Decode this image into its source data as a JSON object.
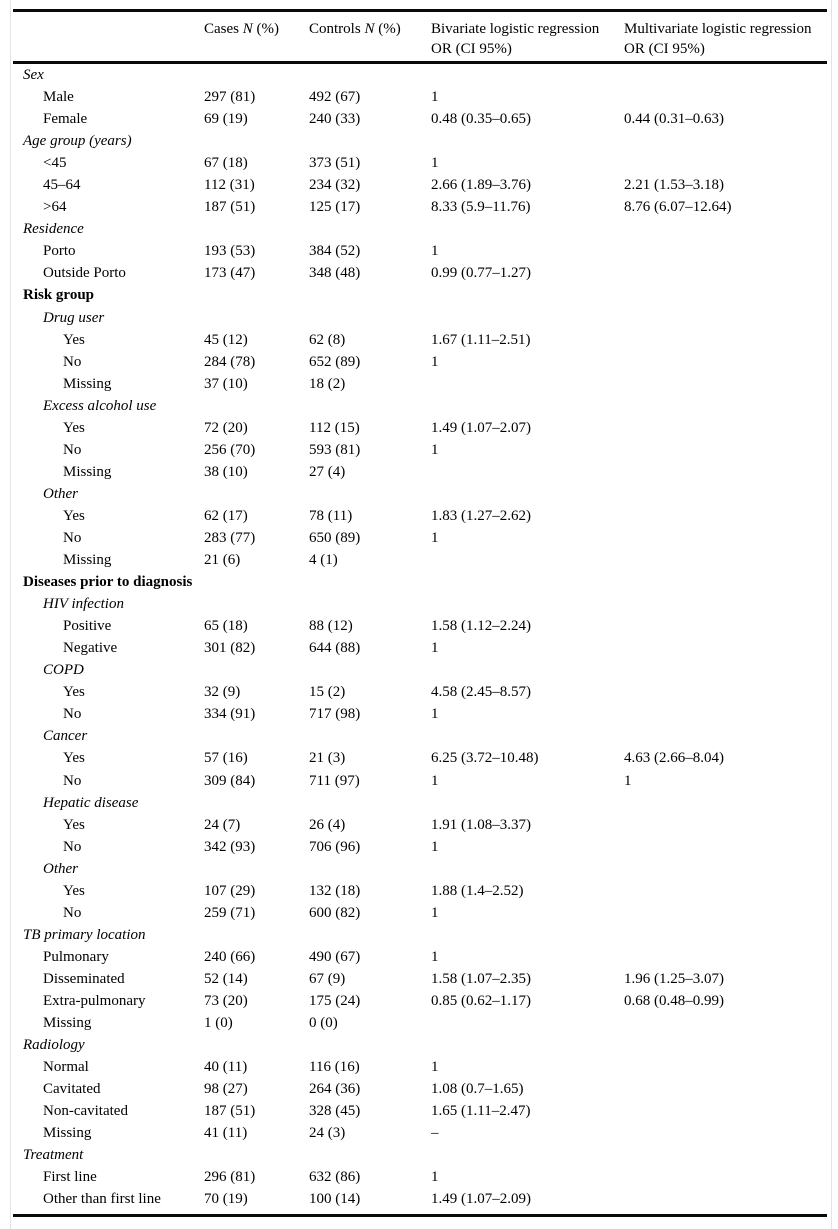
{
  "header": {
    "cases": {
      "pre": "Cases ",
      "n": "N",
      "post": " (%)"
    },
    "controls": {
      "pre": "Controls ",
      "n": "N",
      "post": " (%)"
    },
    "bivariate": {
      "line1": "Bivariate logistic regression",
      "line2": "OR (CI 95%)"
    },
    "multivariate": {
      "line1": "Multivariate logistic regression",
      "line2": "OR (CI 95%)"
    }
  },
  "rows": [
    {
      "label": "Sex",
      "indent": 0,
      "style": "italic",
      "cases": "",
      "controls": "",
      "bivariate": "",
      "multivariate": ""
    },
    {
      "label": "Male",
      "indent": 1,
      "style": "plain",
      "cases": "297 (81)",
      "controls": "492 (67)",
      "bivariate": "1",
      "multivariate": ""
    },
    {
      "label": "Female",
      "indent": 1,
      "style": "plain",
      "cases": "69 (19)",
      "controls": "240 (33)",
      "bivariate": "0.48 (0.35–0.65)",
      "multivariate": "0.44 (0.31–0.63)"
    },
    {
      "label": "Age group (years)",
      "indent": 0,
      "style": "italic",
      "cases": "",
      "controls": "",
      "bivariate": "",
      "multivariate": ""
    },
    {
      "label": "<45",
      "indent": 1,
      "style": "plain",
      "cases": "67 (18)",
      "controls": "373 (51)",
      "bivariate": "1",
      "multivariate": ""
    },
    {
      "label": "45–64",
      "indent": 1,
      "style": "plain",
      "cases": "112 (31)",
      "controls": "234 (32)",
      "bivariate": "2.66 (1.89–3.76)",
      "multivariate": "2.21 (1.53–3.18)"
    },
    {
      "label": ">64",
      "indent": 1,
      "style": "plain",
      "cases": "187 (51)",
      "controls": "125 (17)",
      "bivariate": "8.33 (5.9–11.76)",
      "multivariate": "8.76 (6.07–12.64)"
    },
    {
      "label": "Residence",
      "indent": 0,
      "style": "italic",
      "cases": "",
      "controls": "",
      "bivariate": "",
      "multivariate": ""
    },
    {
      "label": "Porto",
      "indent": 1,
      "style": "plain",
      "cases": "193 (53)",
      "controls": "384 (52)",
      "bivariate": "1",
      "multivariate": ""
    },
    {
      "label": "Outside Porto",
      "indent": 1,
      "style": "plain",
      "cases": "173 (47)",
      "controls": "348 (48)",
      "bivariate": "0.99 (0.77–1.27)",
      "multivariate": ""
    },
    {
      "label": "Risk group",
      "indent": 0,
      "style": "bold",
      "cases": "",
      "controls": "",
      "bivariate": "",
      "multivariate": ""
    },
    {
      "label": "Drug user",
      "indent": 1,
      "style": "italic",
      "cases": "",
      "controls": "",
      "bivariate": "",
      "multivariate": ""
    },
    {
      "label": "Yes",
      "indent": 2,
      "style": "plain",
      "cases": "45 (12)",
      "controls": "62 (8)",
      "bivariate": "1.67 (1.11–2.51)",
      "multivariate": ""
    },
    {
      "label": "No",
      "indent": 2,
      "style": "plain",
      "cases": "284 (78)",
      "controls": "652 (89)",
      "bivariate": "1",
      "multivariate": ""
    },
    {
      "label": "Missing",
      "indent": 2,
      "style": "plain",
      "cases": "37 (10)",
      "controls": "18 (2)",
      "bivariate": "",
      "multivariate": ""
    },
    {
      "label": "Excess alcohol use",
      "indent": 1,
      "style": "italic",
      "cases": "",
      "controls": "",
      "bivariate": "",
      "multivariate": ""
    },
    {
      "label": "Yes",
      "indent": 2,
      "style": "plain",
      "cases": "72 (20)",
      "controls": "112 (15)",
      "bivariate": "1.49 (1.07–2.07)",
      "multivariate": ""
    },
    {
      "label": "No",
      "indent": 2,
      "style": "plain",
      "cases": "256 (70)",
      "controls": "593 (81)",
      "bivariate": "1",
      "multivariate": ""
    },
    {
      "label": "Missing",
      "indent": 2,
      "style": "plain",
      "cases": "38 (10)",
      "controls": "27 (4)",
      "bivariate": "",
      "multivariate": ""
    },
    {
      "label": "Other",
      "indent": 1,
      "style": "italic",
      "cases": "",
      "controls": "",
      "bivariate": "",
      "multivariate": ""
    },
    {
      "label": "Yes",
      "indent": 2,
      "style": "plain",
      "cases": "62 (17)",
      "controls": "78 (11)",
      "bivariate": "1.83 (1.27–2.62)",
      "multivariate": ""
    },
    {
      "label": "No",
      "indent": 2,
      "style": "plain",
      "cases": "283 (77)",
      "controls": "650 (89)",
      "bivariate": "1",
      "multivariate": ""
    },
    {
      "label": "Missing",
      "indent": 2,
      "style": "plain",
      "cases": "21 (6)",
      "controls": "4 (1)",
      "bivariate": "",
      "multivariate": ""
    },
    {
      "label": "Diseases prior to diagnosis",
      "indent": 0,
      "style": "bold",
      "cases": "",
      "controls": "",
      "bivariate": "",
      "multivariate": ""
    },
    {
      "label": "HIV infection",
      "indent": 1,
      "style": "italic",
      "cases": "",
      "controls": "",
      "bivariate": "",
      "multivariate": ""
    },
    {
      "label": "Positive",
      "indent": 2,
      "style": "plain",
      "cases": "65 (18)",
      "controls": "88 (12)",
      "bivariate": "1.58 (1.12–2.24)",
      "multivariate": ""
    },
    {
      "label": "Negative",
      "indent": 2,
      "style": "plain",
      "cases": "301 (82)",
      "controls": "644 (88)",
      "bivariate": "1",
      "multivariate": ""
    },
    {
      "label": "COPD",
      "indent": 1,
      "style": "italic",
      "cases": "",
      "controls": "",
      "bivariate": "",
      "multivariate": ""
    },
    {
      "label": "Yes",
      "indent": 2,
      "style": "plain",
      "cases": "32 (9)",
      "controls": "15 (2)",
      "bivariate": "4.58 (2.45–8.57)",
      "multivariate": ""
    },
    {
      "label": "No",
      "indent": 2,
      "style": "plain",
      "cases": "334 (91)",
      "controls": "717 (98)",
      "bivariate": "1",
      "multivariate": ""
    },
    {
      "label": "Cancer",
      "indent": 1,
      "style": "italic",
      "cases": "",
      "controls": "",
      "bivariate": "",
      "multivariate": ""
    },
    {
      "label": "Yes",
      "indent": 2,
      "style": "plain",
      "cases": "57 (16)",
      "controls": "21 (3)",
      "bivariate": "6.25 (3.72–10.48)",
      "multivariate": "4.63 (2.66–8.04)"
    },
    {
      "label": "No",
      "indent": 2,
      "style": "plain",
      "cases": "309 (84)",
      "controls": "711 (97)",
      "bivariate": "1",
      "multivariate": "1"
    },
    {
      "label": "Hepatic disease",
      "indent": 1,
      "style": "italic",
      "cases": "",
      "controls": "",
      "bivariate": "",
      "multivariate": ""
    },
    {
      "label": "Yes",
      "indent": 2,
      "style": "plain",
      "cases": "24 (7)",
      "controls": "26 (4)",
      "bivariate": "1.91 (1.08–3.37)",
      "multivariate": ""
    },
    {
      "label": "No",
      "indent": 2,
      "style": "plain",
      "cases": "342 (93)",
      "controls": "706 (96)",
      "bivariate": "1",
      "multivariate": ""
    },
    {
      "label": "Other",
      "indent": 1,
      "style": "italic",
      "cases": "",
      "controls": "",
      "bivariate": "",
      "multivariate": ""
    },
    {
      "label": "Yes",
      "indent": 2,
      "style": "plain",
      "cases": "107 (29)",
      "controls": "132 (18)",
      "bivariate": "1.88 (1.4–2.52)",
      "multivariate": ""
    },
    {
      "label": "No",
      "indent": 2,
      "style": "plain",
      "cases": "259 (71)",
      "controls": "600 (82)",
      "bivariate": "1",
      "multivariate": ""
    },
    {
      "label": "TB primary location",
      "indent": 0,
      "style": "italic",
      "cases": "",
      "controls": "",
      "bivariate": "",
      "multivariate": ""
    },
    {
      "label": "Pulmonary",
      "indent": 1,
      "style": "plain",
      "cases": "240 (66)",
      "controls": "490 (67)",
      "bivariate": "1",
      "multivariate": ""
    },
    {
      "label": "Disseminated",
      "indent": 1,
      "style": "plain",
      "cases": "52 (14)",
      "controls": "67 (9)",
      "bivariate": "1.58 (1.07–2.35)",
      "multivariate": "1.96 (1.25–3.07)"
    },
    {
      "label": "Extra-pulmonary",
      "indent": 1,
      "style": "plain",
      "cases": "73 (20)",
      "controls": "175 (24)",
      "bivariate": "0.85 (0.62–1.17)",
      "multivariate": "0.68 (0.48–0.99)"
    },
    {
      "label": "Missing",
      "indent": 1,
      "style": "plain",
      "cases": "1 (0)",
      "controls": "0 (0)",
      "bivariate": "",
      "multivariate": ""
    },
    {
      "label": "Radiology",
      "indent": 0,
      "style": "italic",
      "cases": "",
      "controls": "",
      "bivariate": "",
      "multivariate": ""
    },
    {
      "label": "Normal",
      "indent": 1,
      "style": "plain",
      "cases": "40 (11)",
      "controls": "116 (16)",
      "bivariate": "1",
      "multivariate": ""
    },
    {
      "label": "Cavitated",
      "indent": 1,
      "style": "plain",
      "cases": "98 (27)",
      "controls": "264 (36)",
      "bivariate": "1.08 (0.7–1.65)",
      "multivariate": ""
    },
    {
      "label": "Non-cavitated",
      "indent": 1,
      "style": "plain",
      "cases": "187 (51)",
      "controls": "328 (45)",
      "bivariate": "1.65 (1.11–2.47)",
      "multivariate": ""
    },
    {
      "label": "Missing",
      "indent": 1,
      "style": "plain",
      "cases": "41 (11)",
      "controls": "24 (3)",
      "bivariate": "–",
      "multivariate": ""
    },
    {
      "label": "Treatment",
      "indent": 0,
      "style": "italic",
      "cases": "",
      "controls": "",
      "bivariate": "",
      "multivariate": ""
    },
    {
      "label": "First line",
      "indent": 1,
      "style": "plain",
      "cases": "296 (81)",
      "controls": "632 (86)",
      "bivariate": "1",
      "multivariate": ""
    },
    {
      "label": "Other than first line",
      "indent": 1,
      "style": "plain",
      "cases": "70 (19)",
      "controls": "100 (14)",
      "bivariate": "1.49 (1.07–2.09)",
      "multivariate": ""
    }
  ],
  "colors": {
    "rule": "#0a0a0a",
    "frame_border": "#e4e4e4",
    "text": "#000000",
    "background": "#ffffff"
  }
}
